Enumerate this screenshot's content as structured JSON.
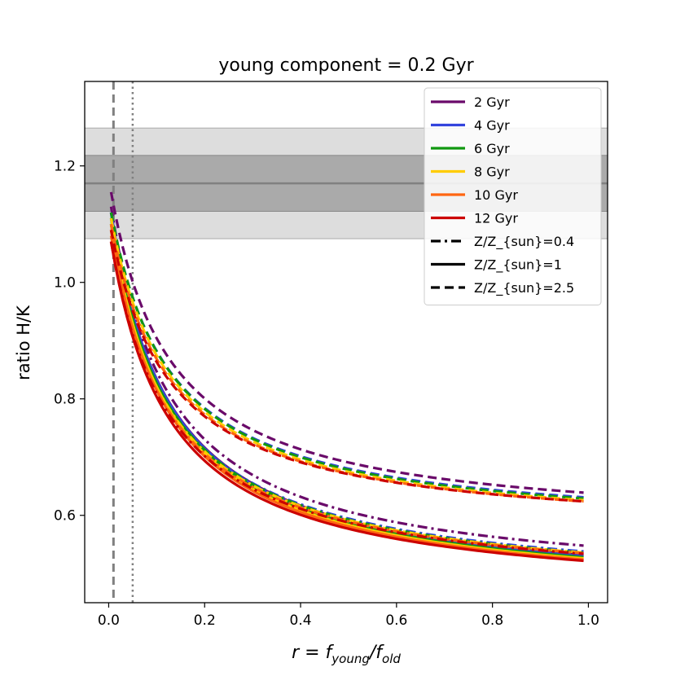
{
  "chart_data": {
    "type": "line",
    "title": "young component = 0.2 Gyr",
    "ylabel": "ratio H/K",
    "xlabel": {
      "base": "r = f",
      "sub1": "young",
      "mid": "/f",
      "sub2": "old"
    },
    "xlim": [
      -0.05,
      1.04
    ],
    "ylim": [
      0.45,
      1.345
    ],
    "xticks": [
      0.0,
      0.2,
      0.4,
      0.6,
      0.8,
      1.0
    ],
    "xtick_labels": [
      "0.0",
      "0.2",
      "0.4",
      "0.6",
      "0.8",
      "1.0"
    ],
    "yticks": [
      0.6,
      0.8,
      1.0,
      1.2
    ],
    "ytick_labels": [
      "0.6",
      "0.8",
      "1.0",
      "1.2"
    ],
    "grid": false,
    "legend_position": "upper right",
    "observed_band": {
      "center": 1.17,
      "inner": [
        1.122,
        1.218
      ],
      "outer": [
        1.075,
        1.265
      ]
    },
    "vertical_lines": [
      {
        "x": 0.01,
        "style": "dashed"
      },
      {
        "x": 0.05,
        "style": "dotted"
      }
    ],
    "x_range": [
      0.005,
      0.99
    ],
    "metallicity_styles": [
      {
        "label": "Z/Z_{sun}=0.4",
        "dash": "dashdot"
      },
      {
        "label": "Z/Z_{sun}=1",
        "dash": "solid"
      },
      {
        "label": "Z/Z_{sun}=2.5",
        "dash": "dashed"
      }
    ],
    "series": [
      {
        "name": "2 Gyr",
        "color": "#6a0a6a",
        "curves": [
          {
            "z": 0,
            "start": 1.13,
            "end": 0.548
          },
          {
            "z": 1,
            "start": 1.12,
            "end": 0.532
          },
          {
            "z": 2,
            "start": 1.155,
            "end": 0.639
          }
        ]
      },
      {
        "name": "4 Gyr",
        "color": "#3344dd",
        "curves": [
          {
            "z": 0,
            "start": 1.1,
            "end": 0.538
          },
          {
            "z": 1,
            "start": 1.12,
            "end": 0.53
          },
          {
            "z": 2,
            "start": 1.12,
            "end": 0.631
          }
        ]
      },
      {
        "name": "6 Gyr",
        "color": "#119911",
        "curves": [
          {
            "z": 0,
            "start": 1.1,
            "end": 0.536
          },
          {
            "z": 1,
            "start": 1.11,
            "end": 0.528
          },
          {
            "z": 2,
            "start": 1.12,
            "end": 0.629
          }
        ]
      },
      {
        "name": "8 Gyr",
        "color": "#ffcc00",
        "curves": [
          {
            "z": 0,
            "start": 1.09,
            "end": 0.536
          },
          {
            "z": 1,
            "start": 1.1,
            "end": 0.526
          },
          {
            "z": 2,
            "start": 1.11,
            "end": 0.626
          }
        ]
      },
      {
        "name": "10 Gyr",
        "color": "#ff6611",
        "curves": [
          {
            "z": 0,
            "start": 1.08,
            "end": 0.535
          },
          {
            "z": 1,
            "start": 1.09,
            "end": 0.524
          },
          {
            "z": 2,
            "start": 1.1,
            "end": 0.624
          }
        ]
      },
      {
        "name": "12 Gyr",
        "color": "#cc0000",
        "curves": [
          {
            "z": 0,
            "start": 1.07,
            "end": 0.534
          },
          {
            "z": 1,
            "start": 1.07,
            "end": 0.522
          },
          {
            "z": 2,
            "start": 1.09,
            "end": 0.624
          }
        ]
      }
    ]
  }
}
